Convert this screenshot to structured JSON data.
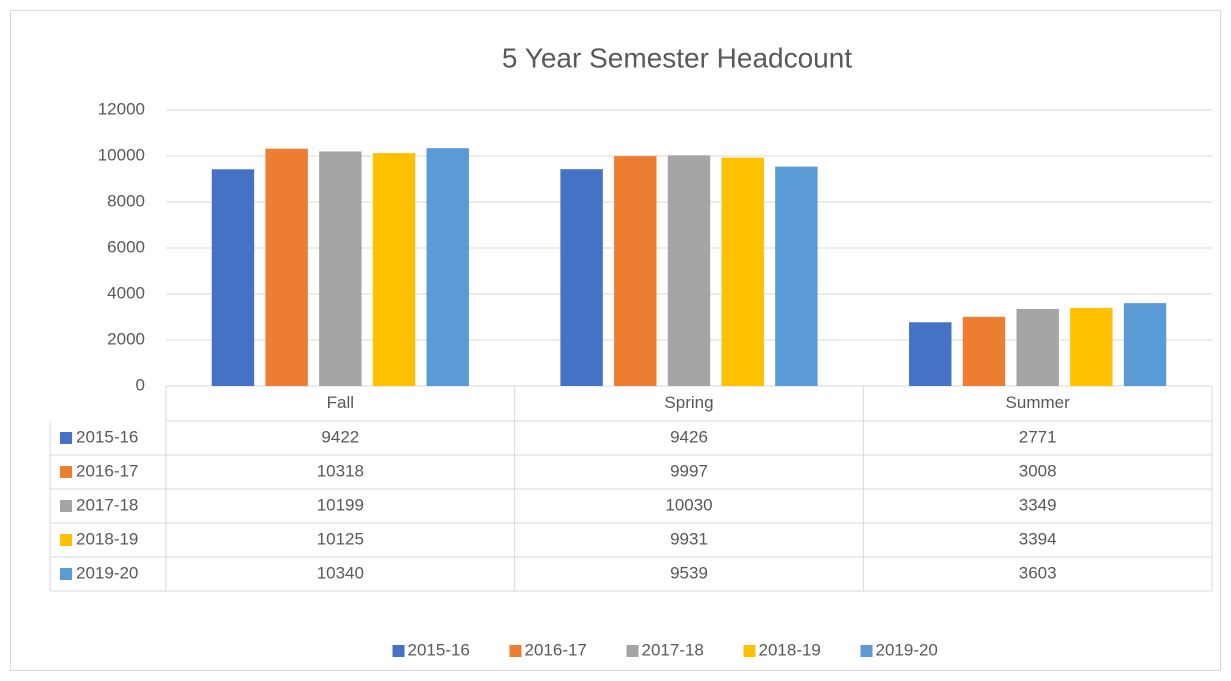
{
  "chart_data": {
    "type": "bar",
    "title": "5 Year Semester Headcount",
    "categories": [
      "Fall",
      "Spring",
      "Summer"
    ],
    "series": [
      {
        "name": "2015-16",
        "color": "#4472c4",
        "values": [
          9422,
          9426,
          2771
        ]
      },
      {
        "name": "2016-17",
        "color": "#ed7d31",
        "values": [
          10318,
          9997,
          3008
        ]
      },
      {
        "name": "2017-18",
        "color": "#a5a5a5",
        "values": [
          10199,
          10030,
          3349
        ]
      },
      {
        "name": "2018-19",
        "color": "#ffc000",
        "values": [
          10125,
          9931,
          3394
        ]
      },
      {
        "name": "2019-20",
        "color": "#5b9bd5",
        "values": [
          10340,
          9539,
          3603
        ]
      }
    ],
    "ylim": [
      0,
      12000
    ],
    "yticks": [
      0,
      2000,
      4000,
      6000,
      8000,
      10000,
      12000
    ],
    "grid": true,
    "legend": "bottom"
  }
}
